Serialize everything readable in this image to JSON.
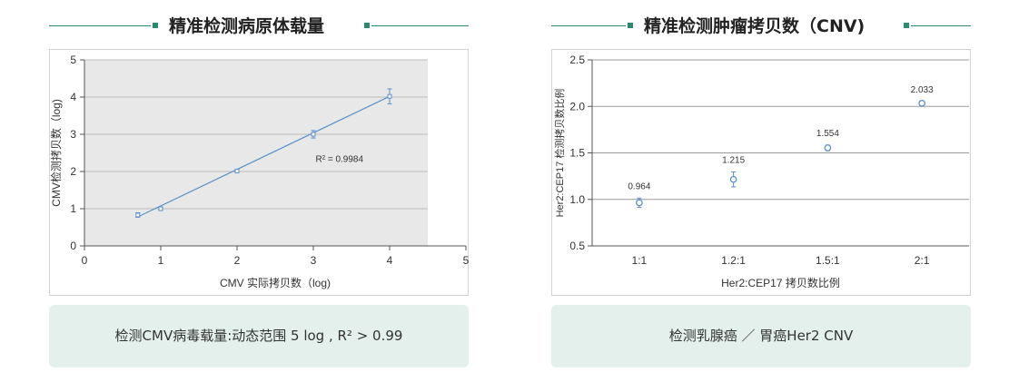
{
  "panels": [
    {
      "header_title": "精准检测病原体载量",
      "caption": "检测CMV病毒载量:动态范围 5 log , R² > 0.99"
    },
    {
      "header_title": "精准检测肿瘤拷贝数（CNV)",
      "caption": "检测乳腺癌 ／ 胃癌Her2 CNV"
    }
  ],
  "colors": {
    "accent": "#2e8a6e",
    "caption_bg": "#e3f0ec",
    "plot_bg": "#e8e8e8",
    "series": "#5b8fc7"
  },
  "chart_data": [
    {
      "type": "scatter",
      "title": "",
      "xlabel": "CMV 实际拷贝数（log)",
      "ylabel": "CMV检测拷贝数（log)",
      "xlim": [
        0,
        5
      ],
      "ylim": [
        0,
        5
      ],
      "x_ticks": [
        "0",
        "1",
        "2",
        "3",
        "4",
        "5"
      ],
      "y_ticks": [
        "0",
        "1",
        "2",
        "3",
        "4",
        "5"
      ],
      "grid": "horizontal",
      "points": [
        {
          "x": 0.7,
          "y": 0.83,
          "err": 0.06
        },
        {
          "x": 1.0,
          "y": 1.0,
          "err": 0.05
        },
        {
          "x": 2.0,
          "y": 2.01,
          "err": 0.02
        },
        {
          "x": 3.0,
          "y": 3.0,
          "err": 0.1
        },
        {
          "x": 4.0,
          "y": 4.02,
          "err": 0.2
        }
      ],
      "fit_line": {
        "x": [
          0.7,
          4.0
        ],
        "y": [
          0.78,
          4.02
        ]
      },
      "annotation": "R² = 0.9984"
    },
    {
      "type": "scatter",
      "title": "",
      "xlabel": "Her2:CEP17 拷贝数比例",
      "ylabel": "Her2:CEP17 检测拷贝数比例",
      "categories": [
        "1:1",
        "1.2:1",
        "1.5:1",
        "2:1"
      ],
      "ylim": [
        0.5,
        2.5
      ],
      "y_ticks": [
        "0.5",
        "1.0",
        "1.5",
        "2.0",
        "2.5"
      ],
      "grid": "horizontal",
      "values": [
        0.964,
        1.215,
        1.554,
        2.033
      ],
      "value_labels": [
        "0.964",
        "1.215",
        "1.554",
        "2.033"
      ],
      "errors": [
        0.05,
        0.08,
        0.03,
        0.02
      ]
    }
  ]
}
